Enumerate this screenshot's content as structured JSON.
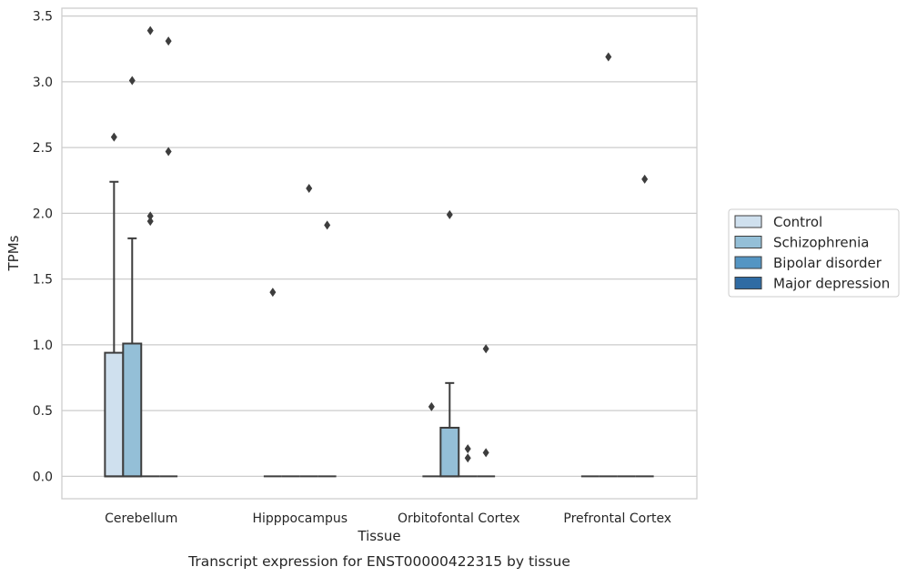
{
  "chart_data": {
    "type": "box",
    "xlabel": "Tissue",
    "ylabel": "TPMs",
    "caption": "Transcript expression for ENST00000422315 by tissue",
    "ylim": [
      -0.17,
      3.56
    ],
    "yticks": [
      "0.0",
      "0.5",
      "1.0",
      "1.5",
      "2.0",
      "2.5",
      "3.0",
      "3.5"
    ],
    "categories": [
      "Cerebellum",
      "Hipppocampus",
      "Orbitofontal Cortex",
      "Prefrontal Cortex"
    ],
    "grid": "horizontal",
    "legend_position": "right",
    "series": [
      {
        "name": "Control",
        "color": "#cfe0ee",
        "boxes": [
          {
            "q1": 0.0,
            "median": 0.0,
            "q3": 0.94,
            "whisker_low": 0.0,
            "whisker_high": 2.24,
            "outliers": [
              2.58
            ]
          },
          {
            "q1": 0.0,
            "median": 0.0,
            "q3": 0.0,
            "whisker_low": 0.0,
            "whisker_high": 0.0,
            "outliers": [
              1.4
            ]
          },
          {
            "q1": 0.0,
            "median": 0.0,
            "q3": 0.0,
            "whisker_low": 0.0,
            "whisker_high": 0.0,
            "outliers": [
              0.53
            ]
          },
          {
            "q1": 0.0,
            "median": 0.0,
            "q3": 0.0,
            "whisker_low": 0.0,
            "whisker_high": 0.0,
            "outliers": []
          }
        ]
      },
      {
        "name": "Schizophrenia",
        "color": "#94bfd7",
        "boxes": [
          {
            "q1": 0.0,
            "median": 0.0,
            "q3": 1.01,
            "whisker_low": 0.0,
            "whisker_high": 1.81,
            "outliers": [
              3.01
            ]
          },
          {
            "q1": 0.0,
            "median": 0.0,
            "q3": 0.0,
            "whisker_low": 0.0,
            "whisker_high": 0.0,
            "outliers": []
          },
          {
            "q1": 0.0,
            "median": 0.0,
            "q3": 0.37,
            "whisker_low": 0.0,
            "whisker_high": 0.71,
            "outliers": [
              1.99
            ]
          },
          {
            "q1": 0.0,
            "median": 0.0,
            "q3": 0.0,
            "whisker_low": 0.0,
            "whisker_high": 0.0,
            "outliers": [
              3.19
            ]
          }
        ]
      },
      {
        "name": "Bipolar disorder",
        "color": "#5495c3",
        "boxes": [
          {
            "q1": 0.0,
            "median": 0.0,
            "q3": 0.0,
            "whisker_low": 0.0,
            "whisker_high": 0.0,
            "outliers": [
              3.39,
              1.98,
              1.94
            ]
          },
          {
            "q1": 0.0,
            "median": 0.0,
            "q3": 0.0,
            "whisker_low": 0.0,
            "whisker_high": 0.0,
            "outliers": [
              2.19
            ]
          },
          {
            "q1": 0.0,
            "median": 0.0,
            "q3": 0.0,
            "whisker_low": 0.0,
            "whisker_high": 0.0,
            "outliers": [
              0.21,
              0.14
            ]
          },
          {
            "q1": 0.0,
            "median": 0.0,
            "q3": 0.0,
            "whisker_low": 0.0,
            "whisker_high": 0.0,
            "outliers": []
          }
        ]
      },
      {
        "name": "Major depression",
        "color": "#2f6ba3",
        "boxes": [
          {
            "q1": 0.0,
            "median": 0.0,
            "q3": 0.0,
            "whisker_low": 0.0,
            "whisker_high": 0.0,
            "outliers": [
              3.31,
              2.47
            ]
          },
          {
            "q1": 0.0,
            "median": 0.0,
            "q3": 0.0,
            "whisker_low": 0.0,
            "whisker_high": 0.0,
            "outliers": [
              1.91
            ]
          },
          {
            "q1": 0.0,
            "median": 0.0,
            "q3": 0.0,
            "whisker_low": 0.0,
            "whisker_high": 0.0,
            "outliers": [
              0.97,
              0.18
            ]
          },
          {
            "q1": 0.0,
            "median": 0.0,
            "q3": 0.0,
            "whisker_low": 0.0,
            "whisker_high": 0.0,
            "outliers": [
              2.26
            ]
          }
        ]
      }
    ]
  }
}
